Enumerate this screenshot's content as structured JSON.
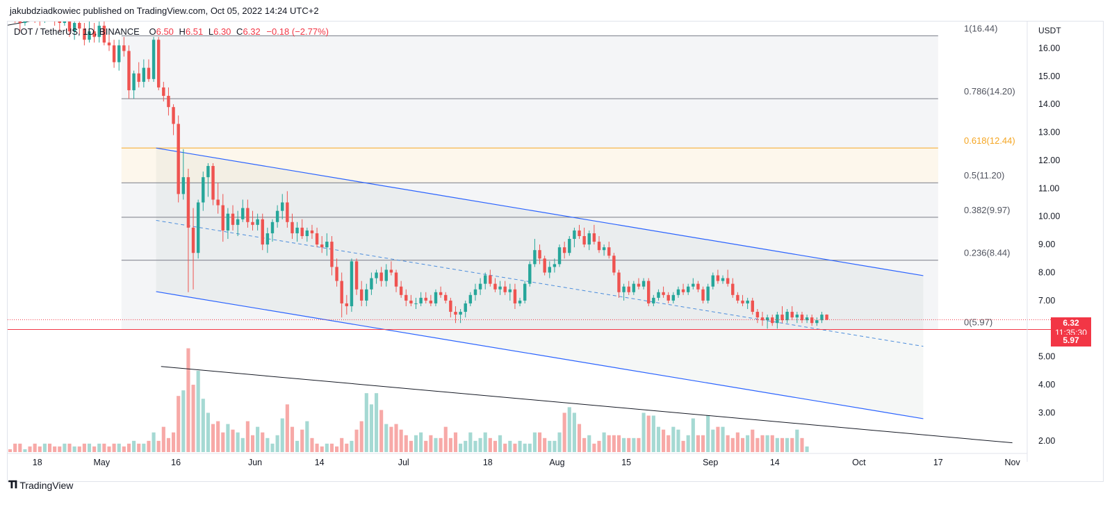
{
  "header": {
    "published_by": "jakubdziadkowiec published on TradingView.com, Oct 05, 2022 14:24 UTC+2"
  },
  "legend": {
    "symbol": "DOT / TetherUS, 1D, BINANCE",
    "o_label": "O",
    "o": "6.50",
    "h_label": "H",
    "h": "6.51",
    "l_label": "L",
    "l": "6.30",
    "c_label": "C",
    "c": "6.32",
    "change": "−0.18 (−2.77%)"
  },
  "price_boxes": {
    "last_price": "6.32",
    "countdown": "11:35:30",
    "level": "5.97"
  },
  "footer": {
    "brand": "TradingView"
  },
  "colors": {
    "up": "#26a69a",
    "down": "#ef5350",
    "up_volume": "#a5d9d3",
    "down_volume": "#f7a9a7",
    "channel": "#2962ff",
    "fib_golden": "#f5a623",
    "grid_text": "#131722"
  },
  "chart_data": {
    "type": "candlestick",
    "title": "DOT / TetherUS, 1D, BINANCE",
    "quote_currency": "USDT",
    "y_axis_label": "USDT",
    "ylim": [
      1.6,
      16.95
    ],
    "y_ticks": [
      2.0,
      3.0,
      4.0,
      5.0,
      6.0,
      7.0,
      8.0,
      9.0,
      10.0,
      11.0,
      12.0,
      13.0,
      14.0,
      15.0,
      16.0
    ],
    "y_tick_labels": [
      "2.00",
      "3.00",
      "4.00",
      "5.00",
      "",
      "7.00",
      "8.00",
      "9.00",
      "10.00",
      "11.00",
      "12.00",
      "13.00",
      "14.00",
      "15.00",
      "16.00"
    ],
    "x_start": "2022-04-12",
    "x_end": "2022-11-04",
    "x_ticks": [
      {
        "date": "2022-04-18",
        "label": "18"
      },
      {
        "date": "2022-05-01",
        "label": "May"
      },
      {
        "date": "2022-05-16",
        "label": "16"
      },
      {
        "date": "2022-06-01",
        "label": "Jun"
      },
      {
        "date": "2022-06-14",
        "label": "14"
      },
      {
        "date": "2022-07-01",
        "label": "Jul"
      },
      {
        "date": "2022-07-18",
        "label": "18"
      },
      {
        "date": "2022-08-01",
        "label": "Aug"
      },
      {
        "date": "2022-08-15",
        "label": "15"
      },
      {
        "date": "2022-09-01",
        "label": "Sep"
      },
      {
        "date": "2022-09-14",
        "label": "14"
      },
      {
        "date": "2022-10-01",
        "label": "Oct"
      },
      {
        "date": "2022-10-17",
        "label": "17"
      },
      {
        "date": "2022-11-01",
        "label": "Nov"
      }
    ],
    "last_close": 6.32,
    "fib_retracement": {
      "start_date": "2022-05-05",
      "end_date": "2022-10-17",
      "levels": [
        {
          "ratio": "1",
          "price": 16.44,
          "label": "1(16.44)"
        },
        {
          "ratio": "0.786",
          "price": 14.2,
          "label": "0.786(14.20)"
        },
        {
          "ratio": "0.618",
          "price": 12.44,
          "label": "0.618(12.44)"
        },
        {
          "ratio": "0.5",
          "price": 11.2,
          "label": "0.5(11.20)"
        },
        {
          "ratio": "0.382",
          "price": 9.97,
          "label": "0.382(9.97)"
        },
        {
          "ratio": "0.236",
          "price": 8.44,
          "label": "0.236(8.44)"
        },
        {
          "ratio": "0",
          "price": 5.97,
          "label": "0(5.97)"
        }
      ]
    },
    "channel": {
      "start_date": "2022-05-12",
      "end_date": "2022-10-14",
      "upper": [
        12.44,
        7.89
      ],
      "lower": [
        7.32,
        2.79
      ],
      "mid": [
        9.86,
        5.37
      ]
    },
    "volume_trendline": {
      "start_date": "2022-05-13",
      "start": 4.65,
      "end_date": "2022-11-01",
      "end": 1.93
    },
    "top_trendline": {
      "start_date": "2022-04-12",
      "start": 16.82,
      "end_date": "2022-04-24",
      "end": 17.2
    },
    "candles_ohlc": [
      [
        17.6,
        17.9,
        17.2,
        17.4
      ],
      [
        17.4,
        17.6,
        16.9,
        17.0
      ],
      [
        17.0,
        17.3,
        16.6,
        16.9
      ],
      [
        16.9,
        17.8,
        16.8,
        17.5
      ],
      [
        17.5,
        17.9,
        17.1,
        17.3
      ],
      [
        17.3,
        17.5,
        16.9,
        17.2
      ],
      [
        17.2,
        17.6,
        16.8,
        17.0
      ],
      [
        17.0,
        17.8,
        16.9,
        17.6
      ],
      [
        17.6,
        17.9,
        17.0,
        17.2
      ],
      [
        17.2,
        17.4,
        16.8,
        17.0
      ],
      [
        17.0,
        17.5,
        16.6,
        16.9
      ],
      [
        16.9,
        17.7,
        16.8,
        17.4
      ],
      [
        17.4,
        17.5,
        16.4,
        16.6
      ],
      [
        16.6,
        17.0,
        16.3,
        16.9
      ],
      [
        16.9,
        17.3,
        16.5,
        16.7
      ],
      [
        16.7,
        16.9,
        16.1,
        16.3
      ],
      [
        16.3,
        17.1,
        16.2,
        16.6
      ],
      [
        16.6,
        16.9,
        16.2,
        16.4
      ],
      [
        16.4,
        17.0,
        16.2,
        16.8
      ],
      [
        16.8,
        17.1,
        16.1,
        16.2
      ],
      [
        16.2,
        16.5,
        15.9,
        16.1
      ],
      [
        16.1,
        16.3,
        15.3,
        15.5
      ],
      [
        15.5,
        16.3,
        15.2,
        16.1
      ],
      [
        16.1,
        16.4,
        15.7,
        15.9
      ],
      [
        15.9,
        16.1,
        14.2,
        14.5
      ],
      [
        14.5,
        15.2,
        14.2,
        15.1
      ],
      [
        15.1,
        15.5,
        14.6,
        14.8
      ],
      [
        14.8,
        15.6,
        14.6,
        15.3
      ],
      [
        15.3,
        15.6,
        14.8,
        14.9
      ],
      [
        14.9,
        16.4,
        14.8,
        16.3
      ],
      [
        16.3,
        16.4,
        14.5,
        14.6
      ],
      [
        14.6,
        14.8,
        14.1,
        14.3
      ],
      [
        14.3,
        14.6,
        13.6,
        13.9
      ],
      [
        13.9,
        14.0,
        12.9,
        13.3
      ],
      [
        13.3,
        13.6,
        10.5,
        10.8
      ],
      [
        10.8,
        12.4,
        10.6,
        11.4
      ],
      [
        11.4,
        11.7,
        7.3,
        9.6
      ],
      [
        9.6,
        10.3,
        7.4,
        8.7
      ],
      [
        8.7,
        10.6,
        8.5,
        10.5
      ],
      [
        10.5,
        11.6,
        10.2,
        11.4
      ],
      [
        11.4,
        11.9,
        10.7,
        11.8
      ],
      [
        11.8,
        11.9,
        10.4,
        10.6
      ],
      [
        10.6,
        11.2,
        10.1,
        10.4
      ],
      [
        10.4,
        10.8,
        9.1,
        9.5
      ],
      [
        9.5,
        10.3,
        9.2,
        10.1
      ],
      [
        10.1,
        10.4,
        9.5,
        9.7
      ],
      [
        9.7,
        10.2,
        9.3,
        9.9
      ],
      [
        9.9,
        10.6,
        9.8,
        10.3
      ],
      [
        10.3,
        10.6,
        9.6,
        9.8
      ],
      [
        9.8,
        10.2,
        9.5,
        9.7
      ],
      [
        9.7,
        10.1,
        9.5,
        9.9
      ],
      [
        9.9,
        10.1,
        8.8,
        9.0
      ],
      [
        9.0,
        9.6,
        8.7,
        9.4
      ],
      [
        9.4,
        9.9,
        9.1,
        9.8
      ],
      [
        9.8,
        10.4,
        9.6,
        10.2
      ],
      [
        10.2,
        10.8,
        9.9,
        10.5
      ],
      [
        10.5,
        10.9,
        9.6,
        9.8
      ],
      [
        9.8,
        10.1,
        9.2,
        9.4
      ],
      [
        9.4,
        9.8,
        9.1,
        9.6
      ],
      [
        9.6,
        9.9,
        9.2,
        9.3
      ],
      [
        9.3,
        9.6,
        9.1,
        9.5
      ],
      [
        9.5,
        9.7,
        9.2,
        9.4
      ],
      [
        9.4,
        9.6,
        8.9,
        9.0
      ],
      [
        9.0,
        9.3,
        8.7,
        8.9
      ],
      [
        8.9,
        9.4,
        8.6,
        9.1
      ],
      [
        9.1,
        9.3,
        7.9,
        8.2
      ],
      [
        8.2,
        8.5,
        7.5,
        7.7
      ],
      [
        7.7,
        8.0,
        6.4,
        6.9
      ],
      [
        6.9,
        7.2,
        6.5,
        6.8
      ],
      [
        6.8,
        8.5,
        6.6,
        8.4
      ],
      [
        8.4,
        8.5,
        7.2,
        7.4
      ],
      [
        7.4,
        7.7,
        6.8,
        7.0
      ],
      [
        7.0,
        7.6,
        6.8,
        7.4
      ],
      [
        7.4,
        8.0,
        7.2,
        7.8
      ],
      [
        7.8,
        8.1,
        7.6,
        8.0
      ],
      [
        8.0,
        8.2,
        7.5,
        7.7
      ],
      [
        7.7,
        8.3,
        7.5,
        8.1
      ],
      [
        8.1,
        8.4,
        7.9,
        8.0
      ],
      [
        8.0,
        8.1,
        7.3,
        7.5
      ],
      [
        7.5,
        7.7,
        7.1,
        7.2
      ],
      [
        7.2,
        7.4,
        6.8,
        7.0
      ],
      [
        7.0,
        7.2,
        6.8,
        6.9
      ],
      [
        6.9,
        7.1,
        6.7,
        6.9
      ],
      [
        6.9,
        7.3,
        6.8,
        7.1
      ],
      [
        7.1,
        7.3,
        6.9,
        7.0
      ],
      [
        7.0,
        7.2,
        6.8,
        6.9
      ],
      [
        6.9,
        7.4,
        6.8,
        7.3
      ],
      [
        7.3,
        7.5,
        7.1,
        7.2
      ],
      [
        7.2,
        7.3,
        6.9,
        7.0
      ],
      [
        7.0,
        7.1,
        6.4,
        6.6
      ],
      [
        6.6,
        6.8,
        6.2,
        6.5
      ],
      [
        6.5,
        6.7,
        6.2,
        6.6
      ],
      [
        6.6,
        7.0,
        6.4,
        6.9
      ],
      [
        6.9,
        7.3,
        6.8,
        7.2
      ],
      [
        7.2,
        7.6,
        7.0,
        7.4
      ],
      [
        7.4,
        7.8,
        7.2,
        7.6
      ],
      [
        7.6,
        8.0,
        7.4,
        7.9
      ],
      [
        7.9,
        8.1,
        7.5,
        7.6
      ],
      [
        7.6,
        7.8,
        7.3,
        7.4
      ],
      [
        7.4,
        7.7,
        7.2,
        7.5
      ],
      [
        7.5,
        7.7,
        7.2,
        7.3
      ],
      [
        7.3,
        7.6,
        7.0,
        7.4
      ],
      [
        7.4,
        7.6,
        6.7,
        6.9
      ],
      [
        6.9,
        7.1,
        6.8,
        7.0
      ],
      [
        7.0,
        7.7,
        6.9,
        7.6
      ],
      [
        7.6,
        8.4,
        7.5,
        8.3
      ],
      [
        8.3,
        9.2,
        8.2,
        8.8
      ],
      [
        8.8,
        9.0,
        8.3,
        8.5
      ],
      [
        8.5,
        8.6,
        7.9,
        8.0
      ],
      [
        8.0,
        8.4,
        7.8,
        8.2
      ],
      [
        8.2,
        8.5,
        8.0,
        8.3
      ],
      [
        8.3,
        9.0,
        8.2,
        8.9
      ],
      [
        8.9,
        9.1,
        8.5,
        8.7
      ],
      [
        8.7,
        9.3,
        8.6,
        9.2
      ],
      [
        9.2,
        9.6,
        8.9,
        9.5
      ],
      [
        9.5,
        9.7,
        9.2,
        9.3
      ],
      [
        9.3,
        9.6,
        8.9,
        9.0
      ],
      [
        9.0,
        9.5,
        8.8,
        9.4
      ],
      [
        9.4,
        9.7,
        9.0,
        9.1
      ],
      [
        9.1,
        9.3,
        8.7,
        8.8
      ],
      [
        8.8,
        9.0,
        8.6,
        8.9
      ],
      [
        8.9,
        9.1,
        8.5,
        8.6
      ],
      [
        8.6,
        8.7,
        7.9,
        8.0
      ],
      [
        8.0,
        8.1,
        7.1,
        7.3
      ],
      [
        7.3,
        7.6,
        7.0,
        7.5
      ],
      [
        7.5,
        7.7,
        7.2,
        7.3
      ],
      [
        7.3,
        7.7,
        7.2,
        7.6
      ],
      [
        7.6,
        7.8,
        7.4,
        7.5
      ],
      [
        7.5,
        7.8,
        7.4,
        7.7
      ],
      [
        7.7,
        7.8,
        6.8,
        6.9
      ],
      [
        6.9,
        7.2,
        6.8,
        7.1
      ],
      [
        7.1,
        7.4,
        7.0,
        7.3
      ],
      [
        7.3,
        7.5,
        7.1,
        7.2
      ],
      [
        7.2,
        7.3,
        6.9,
        7.0
      ],
      [
        7.0,
        7.3,
        6.9,
        7.2
      ],
      [
        7.2,
        7.5,
        7.1,
        7.4
      ],
      [
        7.4,
        7.6,
        7.2,
        7.3
      ],
      [
        7.3,
        7.6,
        7.2,
        7.5
      ],
      [
        7.5,
        7.8,
        7.4,
        7.6
      ],
      [
        7.6,
        7.7,
        7.3,
        7.4
      ],
      [
        7.4,
        7.5,
        6.9,
        7.0
      ],
      [
        7.0,
        7.6,
        6.9,
        7.5
      ],
      [
        7.5,
        8.0,
        7.4,
        7.9
      ],
      [
        7.9,
        8.1,
        7.6,
        7.7
      ],
      [
        7.7,
        7.9,
        7.6,
        7.8
      ],
      [
        7.8,
        8.1,
        7.5,
        7.6
      ],
      [
        7.6,
        7.8,
        7.1,
        7.2
      ],
      [
        7.2,
        7.3,
        6.9,
        7.0
      ],
      [
        7.0,
        7.2,
        6.8,
        6.9
      ],
      [
        6.9,
        7.1,
        6.7,
        7.0
      ],
      [
        7.0,
        7.1,
        6.5,
        6.6
      ],
      [
        6.6,
        6.7,
        6.2,
        6.4
      ],
      [
        6.4,
        6.6,
        6.1,
        6.3
      ],
      [
        6.3,
        6.5,
        6.0,
        6.4
      ],
      [
        6.4,
        6.5,
        6.1,
        6.2
      ],
      [
        6.2,
        6.6,
        6.0,
        6.5
      ],
      [
        6.5,
        6.8,
        6.2,
        6.3
      ],
      [
        6.3,
        6.7,
        6.2,
        6.6
      ],
      [
        6.6,
        6.8,
        6.3,
        6.4
      ],
      [
        6.4,
        6.6,
        6.2,
        6.5
      ],
      [
        6.5,
        6.6,
        6.2,
        6.3
      ],
      [
        6.3,
        6.5,
        6.2,
        6.4
      ],
      [
        6.4,
        6.5,
        6.1,
        6.2
      ],
      [
        6.2,
        6.4,
        6.1,
        6.3
      ],
      [
        6.3,
        6.6,
        6.2,
        6.5
      ],
      [
        6.5,
        6.51,
        6.3,
        6.32
      ]
    ],
    "volume": [
      1.7,
      1.9,
      1.9,
      1.7,
      1.8,
      1.9,
      1.8,
      1.9,
      1.9,
      1.8,
      1.8,
      1.9,
      1.9,
      1.8,
      1.8,
      1.9,
      1.9,
      1.8,
      1.9,
      1.9,
      1.8,
      1.9,
      1.9,
      1.8,
      1.9,
      2.0,
      1.9,
      1.9,
      2.0,
      2.3,
      2.0,
      2.5,
      2.1,
      2.3,
      3.6,
      3.8,
      5.3,
      4.0,
      4.5,
      3.5,
      3.0,
      2.6,
      2.7,
      2.3,
      2.6,
      2.4,
      2.3,
      2.1,
      2.7,
      2.2,
      2.5,
      2.3,
      2.1,
      1.9,
      2.2,
      2.8,
      3.3,
      2.5,
      2.0,
      2.4,
      2.7,
      2.1,
      1.9,
      1.8,
      1.9,
      1.9,
      1.8,
      2.1,
      1.9,
      2.0,
      2.4,
      2.7,
      3.7,
      3.3,
      3.7,
      3.1,
      2.6,
      2.5,
      2.6,
      2.4,
      2.2,
      2.0,
      2.2,
      2.3,
      2.0,
      2.2,
      2.1,
      2.1,
      2.5,
      2.1,
      2.3,
      1.9,
      2.0,
      2.3,
      2.0,
      2.1,
      2.3,
      2.1,
      2.0,
      2.2,
      1.9,
      2.0,
      1.9,
      2.0,
      1.9,
      1.9,
      2.3,
      2.3,
      2.1,
      2.0,
      2.0,
      2.3,
      3.0,
      3.2,
      3.0,
      2.6,
      2.1,
      2.2,
      1.9,
      2.0,
      2.3,
      2.2,
      2.2,
      2.2,
      2.1,
      2.1,
      2.1,
      2.1,
      3.0,
      2.9,
      2.9,
      2.5,
      2.4,
      2.2,
      2.5,
      2.4,
      2.0,
      2.2,
      2.8,
      2.2,
      2.2,
      2.9,
      2.4,
      2.5,
      2.5,
      2.2,
      2.1,
      2.3,
      2.1,
      2.2,
      2.4,
      2.1,
      2.2,
      2.2,
      2.2,
      2.1,
      2.1,
      2.1,
      2.1,
      2.4,
      2.1,
      1.8
    ]
  }
}
